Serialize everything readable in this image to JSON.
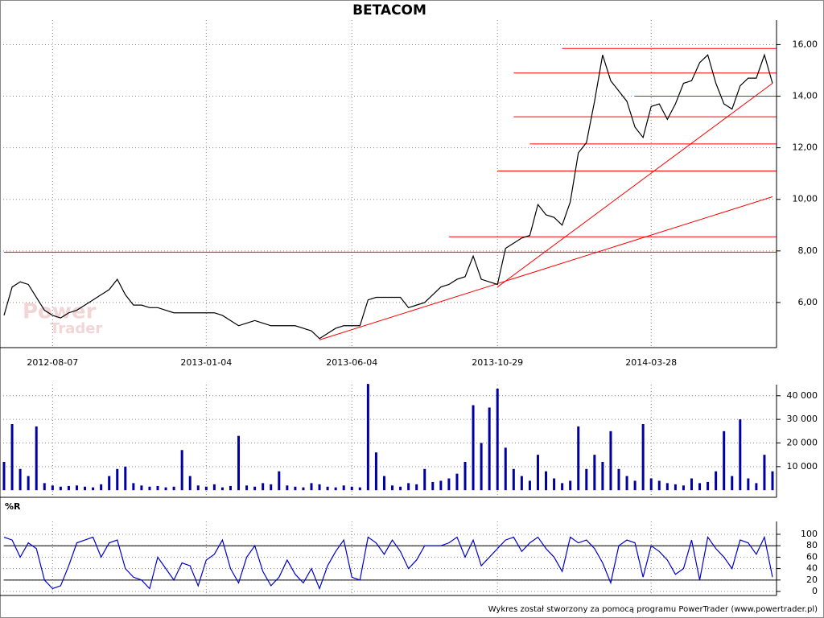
{
  "chart_data": [
    {
      "type": "ohlc-line",
      "title": "BETACOM",
      "watermark": [
        "Power",
        "Trader"
      ],
      "categories": [
        null,
        null,
        null,
        null,
        null,
        null,
        "2012-08-07",
        null,
        null,
        null,
        null,
        null,
        null,
        null,
        null,
        null,
        null,
        null,
        null,
        null,
        null,
        null,
        null,
        null,
        null,
        "2013-01-04",
        null,
        null,
        null,
        null,
        null,
        null,
        null,
        null,
        null,
        null,
        null,
        null,
        null,
        null,
        null,
        null,
        null,
        "2013-06-04",
        null,
        null,
        null,
        null,
        null,
        null,
        null,
        null,
        null,
        null,
        null,
        null,
        null,
        null,
        null,
        null,
        null,
        "2013-10-29",
        null,
        null,
        null,
        null,
        null,
        null,
        null,
        null,
        null,
        null,
        null,
        null,
        null,
        null,
        null,
        null,
        null,
        null,
        "2014-03-28",
        null,
        null,
        null,
        null,
        null,
        null,
        null,
        null,
        null,
        null,
        null,
        null,
        null,
        null,
        null
      ],
      "series": [
        {
          "name": "BETACOM",
          "color": "#000000",
          "values": [
            5.5,
            6.6,
            6.8,
            6.7,
            6.2,
            5.7,
            5.5,
            5.4,
            5.6,
            5.7,
            5.9,
            6.1,
            6.3,
            6.5,
            6.9,
            6.3,
            5.9,
            5.9,
            5.8,
            5.8,
            5.7,
            5.6,
            5.6,
            5.6,
            5.6,
            5.6,
            5.6,
            5.5,
            5.3,
            5.1,
            5.2,
            5.3,
            5.2,
            5.1,
            5.1,
            5.1,
            5.1,
            5.0,
            4.9,
            4.6,
            4.8,
            5.0,
            5.1,
            5.1,
            5.1,
            6.1,
            6.2,
            6.2,
            6.2,
            6.2,
            5.8,
            5.9,
            6.0,
            6.3,
            6.6,
            6.7,
            6.9,
            7.0,
            7.8,
            6.9,
            6.8,
            6.7,
            8.1,
            8.3,
            8.5,
            8.6,
            9.8,
            9.4,
            9.3,
            9.0,
            9.9,
            11.8,
            12.2,
            13.8,
            15.6,
            14.6,
            14.2,
            13.8,
            12.8,
            12.4,
            13.6,
            13.7,
            13.1,
            13.7,
            14.5,
            14.6,
            15.3,
            15.6,
            14.5,
            13.7,
            13.5,
            14.4,
            14.7,
            14.7,
            15.6,
            14.5
          ]
        }
      ],
      "hlines": [
        {
          "from": 69,
          "value": 15.85
        },
        {
          "from": 63,
          "value": 14.9
        },
        {
          "from": 78,
          "value": 14.0
        },
        {
          "from": 63,
          "value": 13.2
        },
        {
          "from": 65,
          "value": 12.15
        },
        {
          "from": 61,
          "value": 11.1
        },
        {
          "from": 55,
          "value": 8.55
        },
        {
          "from": 0,
          "value": 7.95
        }
      ],
      "trendlines": [
        {
          "x": [
            61,
            95
          ],
          "y": [
            6.6,
            14.5
          ]
        },
        {
          "x": [
            39,
            95
          ],
          "y": [
            4.55,
            10.1
          ]
        }
      ],
      "line_color": "#ff0000",
      "ylim": [
        4.25,
        16.95
      ],
      "yticks": [
        {
          "value": 6,
          "label": "6,00"
        },
        {
          "value": 8,
          "label": "8,00"
        },
        {
          "value": 10,
          "label": "10,00"
        },
        {
          "value": 12,
          "label": "12,00"
        },
        {
          "value": 14,
          "label": "14,00"
        },
        {
          "value": 16,
          "label": "16,00"
        }
      ],
      "grid": true
    },
    {
      "type": "bar",
      "series": [
        {
          "name": "Volume",
          "color": "#0000a0",
          "values": [
            12000,
            28000,
            9000,
            6000,
            27000,
            3000,
            2000,
            1500,
            1800,
            2000,
            1500,
            1200,
            2500,
            6000,
            9000,
            10000,
            3000,
            2000,
            1500,
            1800,
            1200,
            1500,
            17000,
            6000,
            2000,
            1500,
            2500,
            1200,
            1800,
            23000,
            2000,
            1500,
            3000,
            2500,
            8000,
            2000,
            1500,
            1200,
            3000,
            2500,
            1500,
            1200,
            2000,
            1500,
            1200,
            45000,
            16000,
            6000,
            2000,
            1500,
            3000,
            2500,
            9000,
            3500,
            4000,
            5000,
            7000,
            12000,
            36000,
            20000,
            35000,
            43000,
            18000,
            9000,
            6000,
            4000,
            15000,
            8000,
            5000,
            3000,
            4000,
            27000,
            9000,
            15000,
            12000,
            25000,
            9000,
            6000,
            4000,
            28000,
            5000,
            4000,
            3000,
            2500,
            2000,
            5000,
            3000,
            3500,
            8000,
            25000,
            6000,
            30000,
            5000,
            3000,
            15000,
            8000
          ]
        }
      ],
      "ylim": [
        -3000,
        44700
      ],
      "yticks": [
        {
          "value": 10000,
          "label": "10 000"
        },
        {
          "value": 20000,
          "label": "20 000"
        },
        {
          "value": 30000,
          "label": "30 000"
        },
        {
          "value": 40000,
          "label": "40 000"
        }
      ],
      "grid": true
    },
    {
      "type": "line",
      "title": "%R",
      "series": [
        {
          "name": "%R",
          "color": "#0000cc",
          "values": [
            95,
            90,
            60,
            85,
            75,
            20,
            5,
            10,
            45,
            85,
            90,
            95,
            60,
            85,
            90,
            40,
            25,
            20,
            5,
            60,
            40,
            20,
            50,
            45,
            10,
            55,
            65,
            90,
            40,
            15,
            60,
            80,
            35,
            10,
            25,
            55,
            30,
            15,
            40,
            5,
            45,
            70,
            90,
            25,
            20,
            95,
            85,
            65,
            90,
            70,
            40,
            55,
            80,
            80,
            80,
            85,
            95,
            60,
            90,
            45,
            60,
            75,
            90,
            95,
            70,
            85,
            95,
            75,
            60,
            35,
            95,
            85,
            90,
            75,
            50,
            15,
            80,
            90,
            85,
            25,
            80,
            70,
            55,
            30,
            40,
            90,
            20,
            95,
            75,
            60,
            40,
            90,
            85,
            65,
            95,
            25
          ]
        }
      ],
      "levels": [
        20,
        80
      ],
      "ylim": [
        -7,
        122.5
      ],
      "yticks": [
        0,
        20,
        40,
        60,
        80,
        100
      ],
      "grid": true
    }
  ],
  "footer": "Wykres został stworzony za pomocą programu PowerTrader (www.powertrader.pl)"
}
